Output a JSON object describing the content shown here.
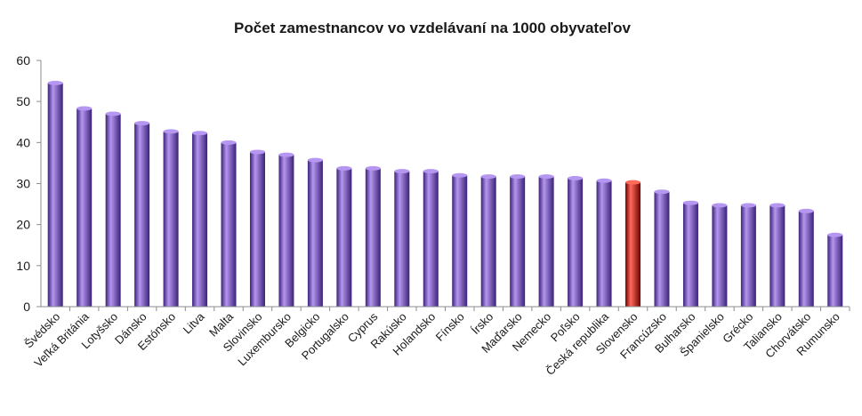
{
  "chart_data": {
    "type": "bar",
    "title": "Počet zamestnancov vo vzdelávaní na 1000  obyvateľov",
    "xlabel": "",
    "ylabel": "",
    "ylim": [
      0,
      60
    ],
    "yticks": [
      0,
      10,
      20,
      30,
      40,
      50,
      60
    ],
    "grid": false,
    "legend": "none",
    "categories": [
      "Švédsko",
      "Veľká Británia",
      "Lotyšsko",
      "Dánsko",
      "Estónsko",
      "Litva",
      "Malta",
      "Slovinsko",
      "Luxembursko",
      "Belgicko",
      "Portugalsko",
      "Cyprus",
      "Rakúsko",
      "Holandsko",
      "Fínsko",
      "Írsko",
      "Maďarsko",
      "Nemecko",
      "Poľsko",
      "Česká republika",
      "Slovensko",
      "Francúzsko",
      "Bulharsko",
      "Španielsko",
      "Grécko",
      "Taliansko",
      "Chorvátsko",
      "Rumunsko"
    ],
    "values": [
      54.5,
      48.3,
      47.0,
      44.7,
      42.7,
      42.3,
      40.0,
      37.7,
      37.0,
      35.7,
      33.7,
      33.7,
      33.0,
      33.0,
      32.0,
      31.7,
      31.7,
      31.7,
      31.3,
      30.7,
      30.3,
      28.0,
      25.3,
      24.7,
      24.7,
      24.7,
      23.3,
      17.5
    ],
    "highlight_category": "Slovensko",
    "colors": {
      "bar": "#7b52d0",
      "bar_light": "#b596f0",
      "bar_dark": "#3a2277",
      "highlight": "#d01010",
      "highlight_light": "#ff6a5a",
      "highlight_dark": "#6e0000",
      "axis": "#8c8c8c"
    }
  }
}
